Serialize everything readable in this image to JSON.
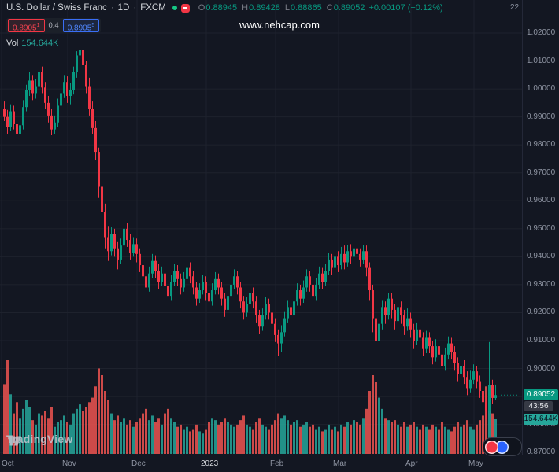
{
  "header": {
    "symbol_title": "U.S. Dollar / Swiss Franc",
    "separator": "·",
    "timeframe": "1D",
    "exchange": "FXCM",
    "ohlc": {
      "o_label": "O",
      "o": "0.88945",
      "h_label": "H",
      "h": "0.89428",
      "l_label": "L",
      "l": "0.88865",
      "c_label": "C",
      "c": "0.89052",
      "change": "+0.00107 (+0.12%)"
    },
    "bid": {
      "main": "0.8905",
      "sup": "1"
    },
    "spread": "0.4",
    "ask": {
      "main": "0.8905",
      "sup": "5"
    },
    "vol_label": "Vol",
    "vol_value": "154.644K",
    "top_right_label": "22"
  },
  "watermark": "www.nehcap.com",
  "axis_badges": {
    "last_price": "0.89052",
    "countdown": "43:56",
    "last_volume": "154.644K"
  },
  "footer": {
    "logo_text": "TradingView"
  },
  "colors": {
    "background": "#131722",
    "grid": "#1e222d",
    "up": "#089981",
    "down": "#f23645",
    "volume_up": "#26a69a",
    "volume_down": "#ef5350",
    "axis_text": "#8f95a3",
    "badge_green": "#089981",
    "badge_teal": "#26a69a",
    "accent_blue": "#2962ff",
    "accent_red": "#f23645"
  },
  "chart_data": {
    "type": "candlestick",
    "title": "U.S. Dollar / Swiss Franc · 1D · FXCM",
    "price_ticks": [
      "1.02000",
      "1.01000",
      "1.00000",
      "0.99000",
      "0.98000",
      "0.97000",
      "0.96000",
      "0.95000",
      "0.94000",
      "0.93000",
      "0.92000",
      "0.91000",
      "0.90000",
      "0.89000",
      "0.88000",
      "0.87000"
    ],
    "visible_price_range": [
      0.869,
      1.032
    ],
    "volume_axis_max": 420,
    "time_ticks": [
      {
        "label": "Oct",
        "index": 0,
        "major": false
      },
      {
        "label": "Nov",
        "index": 21,
        "major": false
      },
      {
        "label": "Dec",
        "index": 43,
        "major": false
      },
      {
        "label": "2023",
        "index": 65,
        "major": true
      },
      {
        "label": "Feb",
        "index": 87,
        "major": false
      },
      {
        "label": "Mar",
        "index": 107,
        "major": false
      },
      {
        "label": "Apr",
        "index": 130,
        "major": false
      },
      {
        "label": "May",
        "index": 150,
        "major": false
      }
    ],
    "candles_format": [
      "open",
      "high",
      "low",
      "close",
      "volume_thousands"
    ],
    "candles": [
      [
        0.993,
        0.9955,
        0.9885,
        0.99,
        310
      ],
      [
        0.99,
        0.9925,
        0.984,
        0.9865,
        420
      ],
      [
        0.9865,
        0.9945,
        0.985,
        0.992,
        265
      ],
      [
        0.992,
        0.994,
        0.9855,
        0.9875,
        180
      ],
      [
        0.9875,
        0.9895,
        0.9815,
        0.984,
        230
      ],
      [
        0.984,
        0.99,
        0.9825,
        0.987,
        160
      ],
      [
        0.987,
        0.996,
        0.9855,
        0.9935,
        200
      ],
      [
        0.9935,
        1.0015,
        0.992,
        0.9995,
        240
      ],
      [
        0.9995,
        1.006,
        0.9975,
        1.003,
        210
      ],
      [
        1.003,
        1.005,
        0.996,
        0.9985,
        150
      ],
      [
        0.9985,
        1.0035,
        0.9965,
        1.001,
        130
      ],
      [
        1.001,
        1.0085,
        0.9995,
        1.006,
        180
      ],
      [
        1.006,
        1.008,
        0.9985,
        1.0005,
        170
      ],
      [
        1.0005,
        1.0025,
        0.993,
        0.995,
        190
      ],
      [
        0.995,
        0.9975,
        0.988,
        0.9905,
        160
      ],
      [
        0.9905,
        0.993,
        0.9835,
        0.9855,
        210
      ],
      [
        0.9855,
        0.9905,
        0.984,
        0.988,
        120
      ],
      [
        0.988,
        0.9965,
        0.9865,
        0.994,
        140
      ],
      [
        0.994,
        1.001,
        0.9925,
        0.9985,
        150
      ],
      [
        0.9985,
        1.005,
        0.997,
        1.0025,
        170
      ],
      [
        1.0025,
        1.0045,
        0.995,
        0.9975,
        140
      ],
      [
        0.9975,
        1.002,
        0.9945,
        0.9995,
        130
      ],
      [
        0.9995,
        1.008,
        0.998,
        1.006,
        180
      ],
      [
        1.006,
        1.0135,
        1.004,
        1.012,
        200
      ],
      [
        1.012,
        1.0148,
        1.0075,
        1.014,
        220
      ],
      [
        1.014,
        1.0145,
        1.006,
        1.0085,
        190
      ],
      [
        1.0085,
        1.01,
        0.9985,
        1.001,
        210
      ],
      [
        1.001,
        1.004,
        0.9905,
        0.993,
        230
      ],
      [
        0.993,
        0.9955,
        0.984,
        0.986,
        250
      ],
      [
        0.986,
        0.9885,
        0.9745,
        0.9775,
        300
      ],
      [
        0.9775,
        0.979,
        0.961,
        0.965,
        380
      ],
      [
        0.965,
        0.968,
        0.9525,
        0.956,
        350
      ],
      [
        0.956,
        0.959,
        0.943,
        0.947,
        280
      ],
      [
        0.947,
        0.951,
        0.9385,
        0.942,
        240
      ],
      [
        0.942,
        0.9505,
        0.9405,
        0.948,
        180
      ],
      [
        0.948,
        0.95,
        0.94,
        0.943,
        150
      ],
      [
        0.943,
        0.9455,
        0.9355,
        0.939,
        170
      ],
      [
        0.939,
        0.9465,
        0.9375,
        0.944,
        140
      ],
      [
        0.944,
        0.9525,
        0.9425,
        0.95,
        160
      ],
      [
        0.95,
        0.952,
        0.9435,
        0.946,
        130
      ],
      [
        0.946,
        0.948,
        0.939,
        0.9415,
        150
      ],
      [
        0.9415,
        0.947,
        0.94,
        0.9445,
        120
      ],
      [
        0.9445,
        0.9465,
        0.938,
        0.941,
        140
      ],
      [
        0.941,
        0.943,
        0.9345,
        0.937,
        160
      ],
      [
        0.937,
        0.9395,
        0.9305,
        0.933,
        180
      ],
      [
        0.933,
        0.9355,
        0.9265,
        0.929,
        200
      ],
      [
        0.929,
        0.9365,
        0.9275,
        0.934,
        150
      ],
      [
        0.934,
        0.941,
        0.9325,
        0.9385,
        170
      ],
      [
        0.9385,
        0.9405,
        0.9325,
        0.935,
        140
      ],
      [
        0.935,
        0.9375,
        0.9285,
        0.931,
        160
      ],
      [
        0.931,
        0.9365,
        0.9295,
        0.934,
        130
      ],
      [
        0.934,
        0.936,
        0.927,
        0.9295,
        180
      ],
      [
        0.9295,
        0.9315,
        0.9235,
        0.926,
        200
      ],
      [
        0.926,
        0.9335,
        0.9245,
        0.931,
        160
      ],
      [
        0.931,
        0.9375,
        0.9295,
        0.935,
        140
      ],
      [
        0.935,
        0.937,
        0.9295,
        0.932,
        120
      ],
      [
        0.932,
        0.934,
        0.9265,
        0.929,
        130
      ],
      [
        0.929,
        0.9345,
        0.9275,
        0.932,
        110
      ],
      [
        0.932,
        0.9385,
        0.9305,
        0.936,
        120
      ],
      [
        0.936,
        0.938,
        0.9305,
        0.933,
        100
      ],
      [
        0.933,
        0.935,
        0.9265,
        0.929,
        110
      ],
      [
        0.929,
        0.931,
        0.9225,
        0.925,
        130
      ],
      [
        0.925,
        0.9305,
        0.9235,
        0.928,
        100
      ],
      [
        0.928,
        0.9335,
        0.9265,
        0.931,
        90
      ],
      [
        0.931,
        0.933,
        0.9245,
        0.927,
        110
      ],
      [
        0.927,
        0.929,
        0.9215,
        0.924,
        140
      ],
      [
        0.924,
        0.9305,
        0.9225,
        0.928,
        160
      ],
      [
        0.928,
        0.9345,
        0.9265,
        0.932,
        150
      ],
      [
        0.932,
        0.934,
        0.9265,
        0.929,
        130
      ],
      [
        0.929,
        0.931,
        0.9225,
        0.925,
        140
      ],
      [
        0.925,
        0.927,
        0.9185,
        0.921,
        160
      ],
      [
        0.921,
        0.9285,
        0.9195,
        0.926,
        140
      ],
      [
        0.926,
        0.9325,
        0.9245,
        0.93,
        130
      ],
      [
        0.93,
        0.9355,
        0.9285,
        0.933,
        120
      ],
      [
        0.933,
        0.935,
        0.9265,
        0.929,
        130
      ],
      [
        0.929,
        0.931,
        0.9215,
        0.924,
        150
      ],
      [
        0.924,
        0.926,
        0.9175,
        0.92,
        170
      ],
      [
        0.92,
        0.9255,
        0.9185,
        0.923,
        130
      ],
      [
        0.923,
        0.9295,
        0.9215,
        0.927,
        120
      ],
      [
        0.927,
        0.929,
        0.9215,
        0.924,
        110
      ],
      [
        0.924,
        0.926,
        0.9165,
        0.919,
        140
      ],
      [
        0.919,
        0.921,
        0.9125,
        0.915,
        160
      ],
      [
        0.915,
        0.9215,
        0.9135,
        0.919,
        130
      ],
      [
        0.919,
        0.9255,
        0.9175,
        0.923,
        120
      ],
      [
        0.923,
        0.925,
        0.9175,
        0.92,
        110
      ],
      [
        0.92,
        0.922,
        0.9135,
        0.916,
        130
      ],
      [
        0.916,
        0.918,
        0.9095,
        0.912,
        150
      ],
      [
        0.912,
        0.914,
        0.9045,
        0.909,
        180
      ],
      [
        0.909,
        0.9155,
        0.906,
        0.913,
        160
      ],
      [
        0.913,
        0.9205,
        0.9115,
        0.918,
        170
      ],
      [
        0.918,
        0.9245,
        0.9165,
        0.922,
        150
      ],
      [
        0.922,
        0.924,
        0.916,
        0.919,
        130
      ],
      [
        0.919,
        0.9265,
        0.9175,
        0.924,
        140
      ],
      [
        0.924,
        0.9305,
        0.9225,
        0.928,
        150
      ],
      [
        0.928,
        0.93,
        0.9225,
        0.925,
        120
      ],
      [
        0.925,
        0.9315,
        0.9235,
        0.929,
        130
      ],
      [
        0.929,
        0.9355,
        0.9275,
        0.933,
        140
      ],
      [
        0.933,
        0.935,
        0.9275,
        0.93,
        120
      ],
      [
        0.93,
        0.932,
        0.9235,
        0.926,
        130
      ],
      [
        0.926,
        0.9325,
        0.9245,
        0.93,
        110
      ],
      [
        0.93,
        0.9365,
        0.9285,
        0.934,
        120
      ],
      [
        0.934,
        0.936,
        0.9285,
        0.931,
        100
      ],
      [
        0.931,
        0.9375,
        0.9295,
        0.935,
        110
      ],
      [
        0.935,
        0.9415,
        0.9335,
        0.939,
        130
      ],
      [
        0.939,
        0.941,
        0.9335,
        0.936,
        110
      ],
      [
        0.936,
        0.9425,
        0.9345,
        0.94,
        120
      ],
      [
        0.94,
        0.942,
        0.9345,
        0.937,
        100
      ],
      [
        0.937,
        0.9435,
        0.9355,
        0.941,
        130
      ],
      [
        0.941,
        0.944,
        0.9355,
        0.938,
        120
      ],
      [
        0.938,
        0.9442,
        0.9365,
        0.942,
        140
      ],
      [
        0.942,
        0.9445,
        0.9375,
        0.94,
        130
      ],
      [
        0.94,
        0.9444,
        0.938,
        0.943,
        150
      ],
      [
        0.943,
        0.9448,
        0.9385,
        0.941,
        140
      ],
      [
        0.941,
        0.943,
        0.9365,
        0.939,
        130
      ],
      [
        0.939,
        0.9443,
        0.9375,
        0.942,
        160
      ],
      [
        0.942,
        0.944,
        0.933,
        0.936,
        200
      ],
      [
        0.936,
        0.938,
        0.9245,
        0.928,
        280
      ],
      [
        0.928,
        0.93,
        0.913,
        0.918,
        350
      ],
      [
        0.918,
        0.921,
        0.904,
        0.91,
        320
      ],
      [
        0.91,
        0.9185,
        0.908,
        0.916,
        250
      ],
      [
        0.916,
        0.9245,
        0.914,
        0.922,
        200
      ],
      [
        0.922,
        0.924,
        0.916,
        0.919,
        160
      ],
      [
        0.919,
        0.927,
        0.9175,
        0.925,
        150
      ],
      [
        0.925,
        0.927,
        0.918,
        0.921,
        140
      ],
      [
        0.921,
        0.923,
        0.914,
        0.917,
        150
      ],
      [
        0.917,
        0.924,
        0.9155,
        0.922,
        130
      ],
      [
        0.922,
        0.924,
        0.916,
        0.919,
        120
      ],
      [
        0.919,
        0.921,
        0.912,
        0.915,
        140
      ],
      [
        0.915,
        0.9215,
        0.9135,
        0.918,
        120
      ],
      [
        0.918,
        0.92,
        0.911,
        0.914,
        130
      ],
      [
        0.914,
        0.916,
        0.907,
        0.91,
        140
      ],
      [
        0.91,
        0.9165,
        0.9085,
        0.914,
        120
      ],
      [
        0.914,
        0.916,
        0.9085,
        0.911,
        110
      ],
      [
        0.911,
        0.913,
        0.9045,
        0.907,
        130
      ],
      [
        0.907,
        0.9135,
        0.9055,
        0.911,
        120
      ],
      [
        0.911,
        0.913,
        0.9055,
        0.908,
        110
      ],
      [
        0.908,
        0.91,
        0.9015,
        0.904,
        130
      ],
      [
        0.904,
        0.9105,
        0.9025,
        0.908,
        120
      ],
      [
        0.908,
        0.91,
        0.9025,
        0.905,
        110
      ],
      [
        0.905,
        0.907,
        0.8985,
        0.901,
        140
      ],
      [
        0.901,
        0.9075,
        0.8995,
        0.905,
        120
      ],
      [
        0.905,
        0.9115,
        0.9035,
        0.909,
        110
      ],
      [
        0.909,
        0.911,
        0.9035,
        0.906,
        100
      ],
      [
        0.906,
        0.908,
        0.8995,
        0.902,
        120
      ],
      [
        0.902,
        0.904,
        0.8955,
        0.898,
        140
      ],
      [
        0.898,
        0.9035,
        0.896,
        0.901,
        120
      ],
      [
        0.901,
        0.903,
        0.8945,
        0.897,
        130
      ],
      [
        0.897,
        0.899,
        0.8905,
        0.893,
        150
      ],
      [
        0.893,
        0.8995,
        0.8915,
        0.896,
        120
      ],
      [
        0.896,
        0.9015,
        0.8945,
        0.899,
        110
      ],
      [
        0.899,
        0.901,
        0.893,
        0.8955,
        130
      ],
      [
        0.8955,
        0.8975,
        0.8895,
        0.892,
        150
      ],
      [
        0.892,
        0.894,
        0.8855,
        0.888,
        170
      ],
      [
        0.888,
        0.8905,
        0.882,
        0.885,
        300
      ],
      [
        0.885,
        0.9095,
        0.884,
        0.894,
        260
      ],
      [
        0.894,
        0.896,
        0.8875,
        0.8895,
        180
      ],
      [
        0.88945,
        0.89428,
        0.88865,
        0.89052,
        154.644
      ]
    ]
  }
}
